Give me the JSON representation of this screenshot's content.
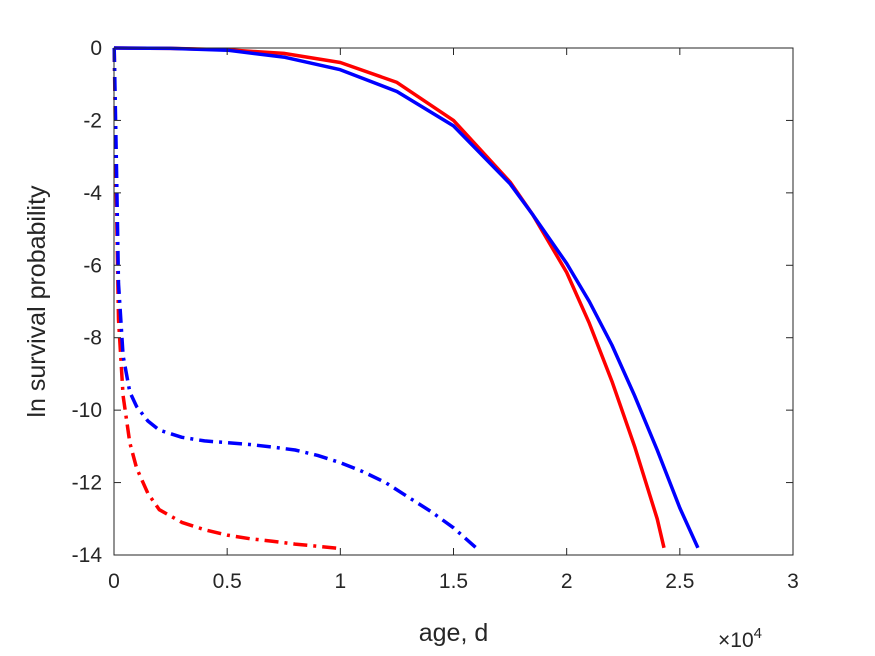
{
  "chart_data": {
    "type": "line",
    "xlabel": "age, d",
    "ylabel": "ln survival probability",
    "x_exponent": {
      "base_label": "×10",
      "power": "4"
    },
    "xlim": [
      0,
      3
    ],
    "ylim": [
      -14,
      0
    ],
    "xticks": [
      "0",
      "0.5",
      "1",
      "1.5",
      "2",
      "2.5",
      "3"
    ],
    "xtick_values": [
      0,
      0.5,
      1,
      1.5,
      2,
      2.5,
      3
    ],
    "yticks": [
      "0",
      "-2",
      "-4",
      "-6",
      "-8",
      "-10",
      "-12",
      "-14"
    ],
    "ytick_values": [
      0,
      -2,
      -4,
      -6,
      -8,
      -10,
      -12,
      -14
    ],
    "grid": false,
    "box": true,
    "series": [
      {
        "color": "#ff0000",
        "style": "solid",
        "x": [
          0,
          0.25,
          0.5,
          0.75,
          1.0,
          1.25,
          1.5,
          1.75,
          1.85,
          2.0,
          2.1,
          2.2,
          2.3,
          2.4,
          2.43
        ],
        "y": [
          0,
          -0.01,
          -0.05,
          -0.15,
          -0.4,
          -0.95,
          -2.0,
          -3.7,
          -4.6,
          -6.2,
          -7.6,
          -9.2,
          -11.0,
          -13.0,
          -13.8
        ]
      },
      {
        "color": "#0000ff",
        "style": "solid",
        "x": [
          0,
          0.25,
          0.5,
          0.75,
          1.0,
          1.25,
          1.5,
          1.75,
          1.85,
          2.0,
          2.1,
          2.2,
          2.3,
          2.4,
          2.5,
          2.58
        ],
        "y": [
          0,
          -0.01,
          -0.06,
          -0.25,
          -0.6,
          -1.2,
          -2.15,
          -3.75,
          -4.6,
          -5.95,
          -7.0,
          -8.2,
          -9.6,
          -11.1,
          -12.7,
          -13.8
        ]
      },
      {
        "color": "#ff0000",
        "style": "dashdot",
        "x": [
          0.001,
          0.01,
          0.02,
          0.04,
          0.07,
          0.1,
          0.15,
          0.2,
          0.3,
          0.4,
          0.5,
          0.6,
          0.7,
          0.8,
          0.9,
          1.0
        ],
        "y": [
          0,
          -4.0,
          -7.5,
          -9.6,
          -10.9,
          -11.6,
          -12.3,
          -12.75,
          -13.1,
          -13.3,
          -13.45,
          -13.55,
          -13.62,
          -13.7,
          -13.76,
          -13.82
        ]
      },
      {
        "color": "#0000ff",
        "style": "dashdot",
        "x": [
          0.001,
          0.01,
          0.02,
          0.04,
          0.07,
          0.1,
          0.15,
          0.2,
          0.3,
          0.4,
          0.5,
          0.6,
          0.7,
          0.8,
          0.9,
          1.0,
          1.1,
          1.2,
          1.3,
          1.4,
          1.5,
          1.6
        ],
        "y": [
          0,
          -3.0,
          -6.5,
          -8.5,
          -9.5,
          -9.9,
          -10.3,
          -10.55,
          -10.75,
          -10.85,
          -10.9,
          -10.95,
          -11.02,
          -11.1,
          -11.25,
          -11.45,
          -11.7,
          -12.0,
          -12.4,
          -12.8,
          -13.25,
          -13.8
        ]
      }
    ]
  }
}
